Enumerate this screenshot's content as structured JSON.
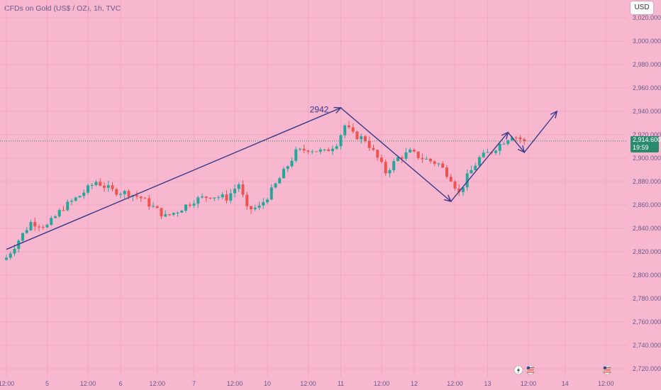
{
  "header": {
    "symbol_title": "CFDs on Gold (US$ / OZ), 1h, TVC"
  },
  "controls": {
    "currency_label": "USD"
  },
  "price_label": {
    "price": "2,914.600",
    "countdown": "19:59"
  },
  "colors": {
    "background": "#f7b8cf",
    "up": "#26a69a",
    "down": "#ef5350",
    "annotation": "#3a3a8a",
    "axis_text": "#6a5a8a"
  },
  "chart_data": {
    "type": "candlestick",
    "title": "CFDs on Gold (US$ / OZ), 1h, TVC",
    "ylim": [
      2713,
      3025
    ],
    "y_ticks": [
      "3,020.000",
      "3,000.000",
      "2,980.000",
      "2,960.000",
      "2,940.000",
      "2,920.000",
      "2,900.000",
      "2,880.000",
      "2,860.000",
      "2,840.000",
      "2,820.000",
      "2,800.000",
      "2,780.000",
      "2,760.000",
      "2,740.000",
      "2,720.000"
    ],
    "y_tick_values": [
      3020,
      3000,
      2980,
      2960,
      2940,
      2920,
      2900,
      2880,
      2860,
      2840,
      2820,
      2800,
      2780,
      2760,
      2740,
      2720
    ],
    "x_ticks": [
      "12:00",
      "5",
      "12:00",
      "6",
      "12:00",
      "7",
      "12:00",
      "10",
      "12:00",
      "11",
      "12:00",
      "12",
      "12:00",
      "13",
      "12:00",
      "14",
      "12:00"
    ],
    "x_tick_index": [
      0,
      10,
      20,
      28,
      37,
      46,
      56,
      64,
      74,
      82,
      92,
      100,
      110,
      118,
      128,
      137,
      147
    ],
    "candles_index_range": [
      0,
      127
    ],
    "close_path": [
      [
        0,
        2815
      ],
      [
        3,
        2830
      ],
      [
        6,
        2845
      ],
      [
        10,
        2842
      ],
      [
        14,
        2858
      ],
      [
        18,
        2868
      ],
      [
        22,
        2880
      ],
      [
        26,
        2872
      ],
      [
        30,
        2870
      ],
      [
        33,
        2866
      ],
      [
        36,
        2858
      ],
      [
        39,
        2850
      ],
      [
        42,
        2855
      ],
      [
        46,
        2864
      ],
      [
        50,
        2868
      ],
      [
        54,
        2866
      ],
      [
        57,
        2878
      ],
      [
        59,
        2856
      ],
      [
        62,
        2858
      ],
      [
        65,
        2872
      ],
      [
        68,
        2888
      ],
      [
        71,
        2905
      ],
      [
        74,
        2908
      ],
      [
        78,
        2905
      ],
      [
        81,
        2913
      ],
      [
        83,
        2928
      ],
      [
        85,
        2920
      ],
      [
        88,
        2916
      ],
      [
        91,
        2900
      ],
      [
        93,
        2888
      ],
      [
        96,
        2900
      ],
      [
        99,
        2905
      ],
      [
        102,
        2900
      ],
      [
        106,
        2895
      ],
      [
        109,
        2883
      ],
      [
        111,
        2870
      ],
      [
        113,
        2884
      ],
      [
        116,
        2900
      ],
      [
        119,
        2906
      ],
      [
        121,
        2912
      ],
      [
        124,
        2920
      ],
      [
        127,
        2914.6
      ]
    ],
    "last_price": 2914.6,
    "annotations": [
      {
        "type": "text",
        "label": "2942",
        "x": 81,
        "y": 2942
      },
      {
        "type": "path",
        "points": [
          [
            0,
            2822
          ],
          [
            82,
            2943
          ],
          [
            109,
            2863
          ],
          [
            123,
            2922
          ],
          [
            127,
            2905
          ],
          [
            135,
            2940
          ]
        ]
      }
    ]
  }
}
